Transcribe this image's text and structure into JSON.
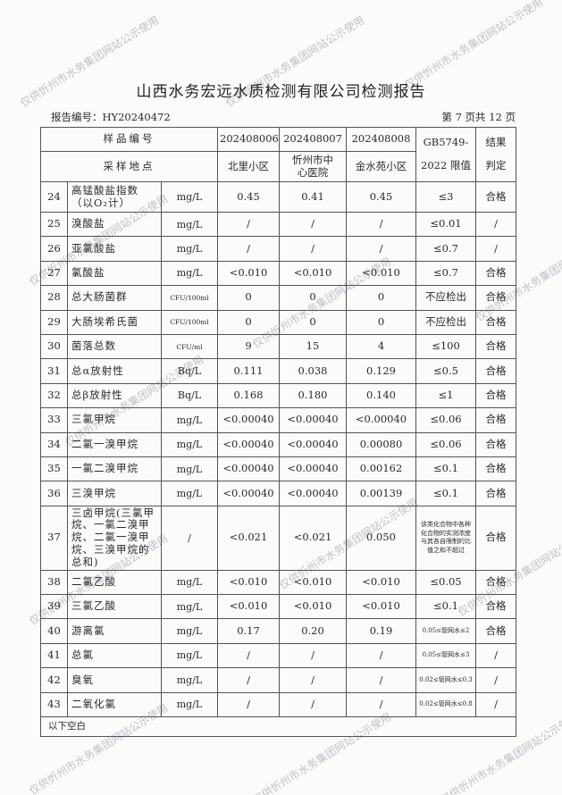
{
  "title": "山西水务宏远水质检测有限公司检测报告",
  "report_no": "报告编号：HY20240472",
  "page_info": "第 7 页共 12 页",
  "header": {
    "sample_no_label": "样品编号",
    "site_label": "采样地点",
    "samples": [
      "202408006",
      "202408007",
      "202408008"
    ],
    "sites": [
      "北里小区",
      "忻州市中心医院",
      "金水苑小区"
    ],
    "limit_label_1": "GB5749-",
    "limit_label_2": "2022 限值",
    "result_label_1": "结果",
    "result_label_2": "判定"
  },
  "rows": [
    {
      "no": "24",
      "name": "高锰酸盐指数（以O₂计）",
      "unit": "mg/L",
      "v": [
        "0.45",
        "0.41",
        "0.45"
      ],
      "limit": "≤3",
      "result": "合格"
    },
    {
      "no": "25",
      "name": "溴酸盐",
      "unit": "mg/L",
      "v": [
        "/",
        "/",
        "/"
      ],
      "limit": "≤0.01",
      "result": "/"
    },
    {
      "no": "26",
      "name": "亚氯酸盐",
      "unit": "mg/L",
      "v": [
        "/",
        "/",
        "/"
      ],
      "limit": "≤0.7",
      "result": "/"
    },
    {
      "no": "27",
      "name": "氯酸盐",
      "unit": "mg/L",
      "v": [
        "<0.010",
        "<0.010",
        "<0.010"
      ],
      "limit": "≤0.7",
      "result": "合格"
    },
    {
      "no": "28",
      "name": "总大肠菌群",
      "unit": "CFU/100ml",
      "v": [
        "0",
        "0",
        "0"
      ],
      "limit": "不应检出",
      "result": "合格"
    },
    {
      "no": "29",
      "name": "大肠埃希氏菌",
      "unit": "CFU/100ml",
      "v": [
        "0",
        "0",
        "0"
      ],
      "limit": "不应检出",
      "result": "合格"
    },
    {
      "no": "30",
      "name": "菌落总数",
      "unit": "CFU/ml",
      "v": [
        "9",
        "15",
        "4"
      ],
      "limit": "≤100",
      "result": "合格"
    },
    {
      "no": "31",
      "name": "总α放射性",
      "unit": "Bq/L",
      "v": [
        "0.111",
        "0.038",
        "0.129"
      ],
      "limit": "≤0.5",
      "result": "合格"
    },
    {
      "no": "32",
      "name": "总β放射性",
      "unit": "Bq/L",
      "v": [
        "0.168",
        "0.180",
        "0.140"
      ],
      "limit": "≤1",
      "result": "合格"
    },
    {
      "no": "33",
      "name": "三氯甲烷",
      "unit": "mg/L",
      "v": [
        "<0.00040",
        "<0.00040",
        "<0.00040"
      ],
      "limit": "≤0.06",
      "result": "合格"
    },
    {
      "no": "34",
      "name": "二氯一溴甲烷",
      "unit": "mg/L",
      "v": [
        "<0.00040",
        "<0.00040",
        "0.00080"
      ],
      "limit": "≤0.06",
      "result": "合格"
    },
    {
      "no": "35",
      "name": "一氯二溴甲烷",
      "unit": "mg/L",
      "v": [
        "<0.00040",
        "<0.00040",
        "0.00162"
      ],
      "limit": "≤0.1",
      "result": "合格"
    },
    {
      "no": "36",
      "name": "三溴甲烷",
      "unit": "mg/L",
      "v": [
        "<0.00040",
        "<0.00040",
        "0.00139"
      ],
      "limit": "≤0.1",
      "result": "合格"
    },
    {
      "no": "37",
      "name": "三卤甲烷(三氯甲烷、一氯二溴甲烷、二氯一溴甲烷、三溴甲烷的总和)",
      "unit": "/",
      "v": [
        "<0.021",
        "<0.021",
        "0.050"
      ],
      "limit": "该类化合物中各种化合物的实测浓度与其各自限制的比值之和不超过",
      "result": "合格"
    },
    {
      "no": "38",
      "name": "二氯乙酸",
      "unit": "mg/L",
      "v": [
        "<0.010",
        "<0.010",
        "<0.010"
      ],
      "limit": "≤0.05",
      "result": "合格"
    },
    {
      "no": "39",
      "name": "三氯乙酸",
      "unit": "mg/L",
      "v": [
        "<0.010",
        "<0.010",
        "<0.010"
      ],
      "limit": "≤0.1",
      "result": "合格"
    },
    {
      "no": "40",
      "name": "游离氯",
      "unit": "mg/L",
      "v": [
        "0.17",
        "0.20",
        "0.19"
      ],
      "limit": "0.05≤管网水≤2",
      "result": "合格"
    },
    {
      "no": "41",
      "name": "总氯",
      "unit": "mg/L",
      "v": [
        "/",
        "/",
        "/"
      ],
      "limit": "0.05≤管网水≤3",
      "result": "/"
    },
    {
      "no": "42",
      "name": "臭氧",
      "unit": "mg/L",
      "v": [
        "/",
        "/",
        "/"
      ],
      "limit": "0.02≤管网水≤0.3",
      "result": "/"
    },
    {
      "no": "43",
      "name": "二氧化氯",
      "unit": "mg/L",
      "v": [
        "/",
        "/",
        "/"
      ],
      "limit": "0.02≤管网水≤0.8",
      "result": "/"
    }
  ],
  "footer_note": "以下空白",
  "watermark": "仅供忻州市水务集团网站公示使用"
}
